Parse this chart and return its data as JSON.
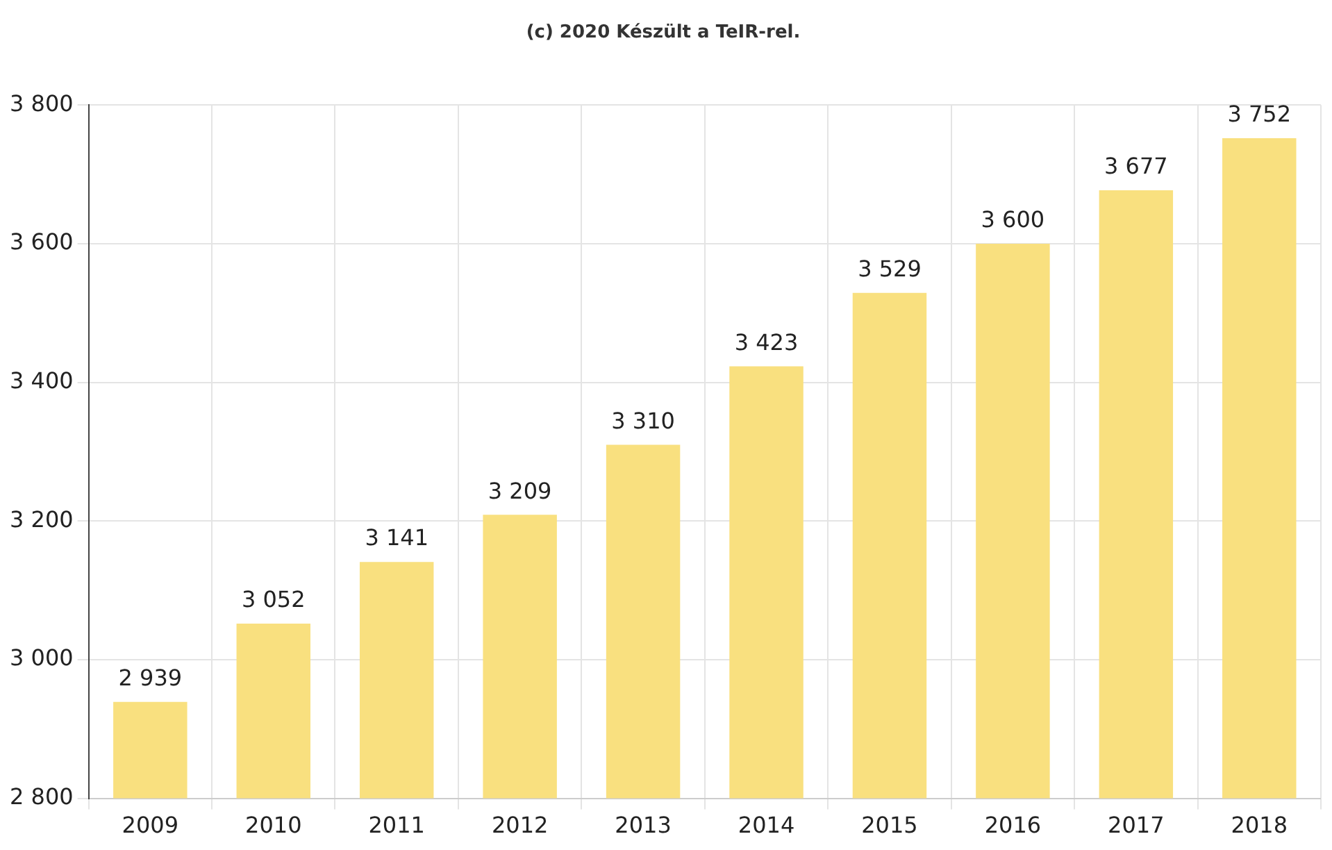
{
  "chart_data": {
    "type": "bar",
    "title": "(c) 2020 Készült a TeIR-rel.",
    "categories": [
      "2009",
      "2010",
      "2011",
      "2012",
      "2013",
      "2014",
      "2015",
      "2016",
      "2017",
      "2018"
    ],
    "values": [
      2939,
      3052,
      3141,
      3209,
      3310,
      3423,
      3529,
      3600,
      3677,
      3752
    ],
    "value_labels": [
      "2 939",
      "3 052",
      "3 141",
      "3 209",
      "3 310",
      "3 423",
      "3 529",
      "3 600",
      "3 677",
      "3 752"
    ],
    "color": "#f9e07f",
    "ylim": [
      2800,
      3800
    ],
    "yticks": [
      {
        "value": 2800,
        "label": "2 800"
      },
      {
        "value": 3000,
        "label": "3 000"
      },
      {
        "value": 3200,
        "label": "3 200"
      },
      {
        "value": 3400,
        "label": "3 400"
      },
      {
        "value": 3600,
        "label": "3 600"
      },
      {
        "value": 3800,
        "label": "3 800"
      }
    ],
    "grid": true,
    "legend": false
  }
}
